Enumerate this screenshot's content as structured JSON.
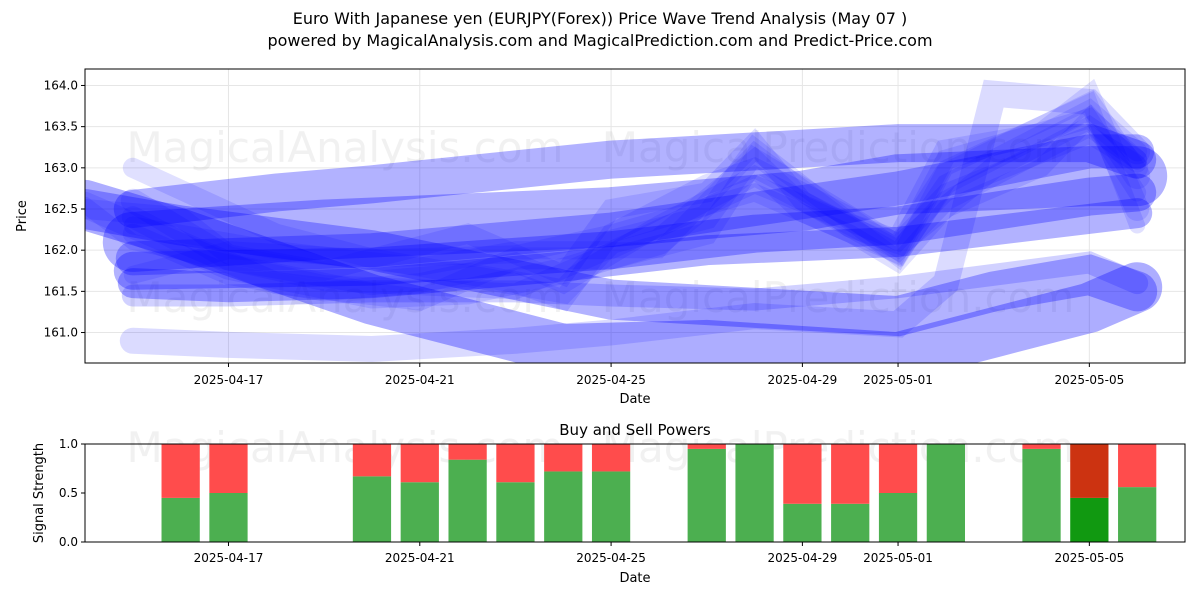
{
  "figure": {
    "title_line1": "Euro With Japanese yen (EURJPY(Forex)) Price Wave Trend Analysis (May 07 )",
    "title_line2": "powered by MagicalAnalysis.com and MagicalPrediction.com and Predict-Price.com",
    "watermarks": [
      "MagicalAnalysis.com",
      "MagicalPrediction.com"
    ]
  },
  "colors": {
    "wave": "#0000ff",
    "buy": "#4caf50",
    "sell": "#ff4c4c",
    "sell_dark": "#cc3311",
    "buy_dark": "#119911"
  },
  "chart_data": [
    {
      "type": "line",
      "title": "",
      "xlabel": "Date",
      "ylabel": "Price",
      "x_ticks": [
        "2025-04-17",
        "2025-04-21",
        "2025-04-25",
        "2025-04-29",
        "2025-05-01",
        "2025-05-05"
      ],
      "y_ticks": [
        161.0,
        161.5,
        162.0,
        162.5,
        163.0,
        163.5,
        164.0
      ],
      "xlim": [
        "2025-04-14",
        "2025-05-07"
      ],
      "ylim": [
        160.63,
        164.2
      ],
      "grid": true,
      "series": [
        {
          "values": [
            [
              "2025-04-14",
              162.55
            ],
            [
              "2025-04-15",
              162.3
            ],
            [
              "2025-04-17",
              161.8
            ],
            [
              "2025-04-20",
              161.45
            ],
            [
              "2025-04-22",
              161.5
            ],
            [
              "2025-04-24",
              161.75
            ],
            [
              "2025-04-26",
              162.1
            ],
            [
              "2025-04-28",
              163.05
            ],
            [
              "2025-04-29",
              162.5
            ],
            [
              "2025-05-01",
              162.0
            ],
            [
              "2025-05-02",
              162.9
            ],
            [
              "2025-05-05",
              163.75
            ],
            [
              "2025-05-06",
              162.9
            ]
          ],
          "width": 26,
          "opacity": 0.12
        },
        {
          "values": [
            [
              "2025-04-15",
              162.6
            ],
            [
              "2025-04-17",
              161.9
            ],
            [
              "2025-04-20",
              161.6
            ],
            [
              "2025-04-22",
              161.7
            ],
            [
              "2025-04-24",
              161.5
            ],
            [
              "2025-04-25",
              162.1
            ],
            [
              "2025-04-27",
              162.4
            ],
            [
              "2025-04-28",
              163.2
            ],
            [
              "2025-04-30",
              162.3
            ],
            [
              "2025-05-01",
              162.1
            ],
            [
              "2025-05-02",
              163.2
            ],
            [
              "2025-05-04",
              163.4
            ],
            [
              "2025-05-05",
              163.85
            ],
            [
              "2025-05-06",
              162.5
            ]
          ],
          "width": 24,
          "opacity": 0.12
        },
        {
          "values": [
            [
              "2025-04-15",
              162.4
            ],
            [
              "2025-04-16",
              162.1
            ],
            [
              "2025-04-18",
              161.6
            ],
            [
              "2025-04-21",
              161.4
            ],
            [
              "2025-04-23",
              161.9
            ],
            [
              "2025-04-25",
              161.9
            ],
            [
              "2025-04-27",
              162.2
            ],
            [
              "2025-04-28",
              163.1
            ],
            [
              "2025-04-30",
              162.4
            ],
            [
              "2025-05-01",
              162.05
            ],
            [
              "2025-05-03",
              163.0
            ],
            [
              "2025-05-05",
              163.6
            ],
            [
              "2025-05-06",
              163.0
            ]
          ],
          "width": 22,
          "opacity": 0.12
        },
        {
          "values": [
            [
              "2025-04-15",
              162.2
            ],
            [
              "2025-04-17",
              161.7
            ],
            [
              "2025-04-19",
              161.5
            ],
            [
              "2025-04-21",
              161.6
            ],
            [
              "2025-04-23",
              161.85
            ],
            [
              "2025-04-24",
              161.6
            ],
            [
              "2025-04-26",
              162.3
            ],
            [
              "2025-04-28",
              162.9
            ],
            [
              "2025-04-29",
              162.6
            ],
            [
              "2025-05-01",
              162.0
            ],
            [
              "2025-05-02",
              162.6
            ],
            [
              "2025-05-04",
              163.2
            ],
            [
              "2025-05-05",
              163.5
            ],
            [
              "2025-05-06",
              163.1
            ]
          ],
          "width": 20,
          "opacity": 0.12
        },
        {
          "values": [
            [
              "2025-04-14",
              162.5
            ],
            [
              "2025-04-16",
              162.4
            ],
            [
              "2025-04-17",
              161.95
            ],
            [
              "2025-04-19",
              161.75
            ],
            [
              "2025-04-22",
              162.2
            ],
            [
              "2025-04-24",
              161.7
            ],
            [
              "2025-04-25",
              162.5
            ],
            [
              "2025-04-27",
              162.7
            ],
            [
              "2025-04-28",
              163.3
            ],
            [
              "2025-04-29",
              162.6
            ],
            [
              "2025-05-01",
              161.95
            ],
            [
              "2025-05-02",
              162.8
            ],
            [
              "2025-05-05",
              163.7
            ],
            [
              "2025-05-06",
              163.2
            ]
          ],
          "width": 20,
          "opacity": 0.12
        },
        {
          "values": [
            [
              "2025-04-15",
              162.3
            ],
            [
              "2025-04-18",
              162.0
            ],
            [
              "2025-04-21",
              161.8
            ],
            [
              "2025-04-23",
              162.0
            ],
            [
              "2025-04-25",
              162.0
            ],
            [
              "2025-04-28",
              162.8
            ],
            [
              "2025-05-01",
              162.1
            ],
            [
              "2025-05-02",
              162.7
            ],
            [
              "2025-05-05",
              163.4
            ],
            [
              "2025-05-06",
              163.05
            ]
          ],
          "width": 18,
          "opacity": 0.12
        },
        {
          "values": [
            [
              "2025-04-15",
              163.0
            ],
            [
              "2025-04-18",
              162.2
            ],
            [
              "2025-04-20",
              161.9
            ],
            [
              "2025-04-23",
              161.6
            ],
            [
              "2025-04-24",
              161.4
            ],
            [
              "2025-04-25",
              162.2
            ],
            [
              "2025-04-27",
              162.8
            ],
            [
              "2025-04-28",
              163.0
            ],
            [
              "2025-04-30",
              162.4
            ],
            [
              "2025-05-01",
              162.0
            ],
            [
              "2025-05-02",
              163.1
            ],
            [
              "2025-05-05",
              163.6
            ],
            [
              "2025-05-06",
              163.1
            ]
          ],
          "width": 20,
          "opacity": 0.12
        },
        {
          "values": [
            [
              "2025-04-15",
              161.7
            ],
            [
              "2025-04-17",
              162.0
            ],
            [
              "2025-04-20",
              161.9
            ],
            [
              "2025-04-23",
              161.95
            ],
            [
              "2025-04-25",
              162.2
            ],
            [
              "2025-04-28",
              162.7
            ],
            [
              "2025-04-30",
              162.2
            ],
            [
              "2025-05-01",
              161.85
            ],
            [
              "2025-05-02",
              162.5
            ],
            [
              "2025-05-04",
              163.0
            ],
            [
              "2025-05-05",
              163.6
            ],
            [
              "2025-05-06",
              162.7
            ]
          ],
          "width": 18,
          "opacity": 0.12
        },
        {
          "values": [
            [
              "2025-04-14",
              162.55
            ],
            [
              "2025-04-15",
              162.1
            ],
            [
              "2025-04-19",
              161.6
            ],
            [
              "2025-04-23",
              161.5
            ],
            [
              "2025-04-25",
              162.0
            ],
            [
              "2025-04-26",
              162.0
            ],
            [
              "2025-04-28",
              163.2
            ],
            [
              "2025-05-01",
              161.9
            ],
            [
              "2025-05-02",
              163.0
            ],
            [
              "2025-05-05",
              163.8
            ],
            [
              "2025-05-06",
              162.3
            ]
          ],
          "width": 16,
          "opacity": 0.12
        },
        {
          "values": [
            [
              "2025-04-15",
              162.5
            ],
            [
              "2025-04-18",
              162.7
            ],
            [
              "2025-04-20",
              162.8
            ],
            [
              "2025-04-25",
              163.1
            ],
            [
              "2025-04-28",
              163.2
            ],
            [
              "2025-05-01",
              163.3
            ],
            [
              "2025-05-05",
              163.3
            ],
            [
              "2025-05-06",
              163.1
            ]
          ],
          "width": 38,
          "opacity": 0.3
        },
        {
          "values": [
            [
              "2025-04-15",
              161.9
            ],
            [
              "2025-04-20",
              162.0
            ],
            [
              "2025-04-25",
              162.25
            ],
            [
              "2025-04-28",
              162.5
            ],
            [
              "2025-05-01",
              162.75
            ],
            [
              "2025-05-05",
              163.2
            ],
            [
              "2025-05-06",
              163.2
            ]
          ],
          "width": 34,
          "opacity": 0.28
        },
        {
          "values": [
            [
              "2025-04-15",
              161.75
            ],
            [
              "2025-04-20",
              161.8
            ],
            [
              "2025-04-25",
              162.0
            ],
            [
              "2025-04-28",
              162.2
            ],
            [
              "2025-05-01",
              162.3
            ],
            [
              "2025-05-05",
              162.65
            ],
            [
              "2025-05-06",
              162.7
            ]
          ],
          "width": 38,
          "opacity": 0.3
        },
        {
          "values": [
            [
              "2025-04-15",
              162.1
            ],
            [
              "2025-04-19",
              162.25
            ],
            [
              "2025-04-25",
              162.4
            ],
            [
              "2025-04-29",
              162.6
            ],
            [
              "2025-05-01",
              162.8
            ],
            [
              "2025-05-05",
              162.9
            ],
            [
              "2025-05-06",
              162.9
            ]
          ],
          "width": 60,
          "opacity": 0.3
        },
        {
          "values": [
            [
              "2025-04-14",
              162.5
            ],
            [
              "2025-04-16",
              162.3
            ],
            [
              "2025-04-20",
              162.0
            ],
            [
              "2025-04-25",
              161.4
            ],
            [
              "2025-05-01",
              161.2
            ],
            [
              "2025-05-03",
              161.5
            ],
            [
              "2025-05-05",
              161.7
            ],
            [
              "2025-05-06",
              161.5
            ]
          ],
          "width": 40,
          "opacity": 0.3
        },
        {
          "values": [
            [
              "2025-04-15",
              161.6
            ],
            [
              "2025-04-17",
              161.55
            ],
            [
              "2025-04-20",
              161.6
            ],
            [
              "2025-04-24",
              161.8
            ],
            [
              "2025-04-27",
              162.0
            ],
            [
              "2025-05-01",
              162.1
            ],
            [
              "2025-05-06",
              162.45
            ]
          ],
          "width": 30,
          "opacity": 0.3
        },
        {
          "values": [
            [
              "2025-04-14",
              162.55
            ],
            [
              "2025-04-16",
              162.2
            ],
            [
              "2025-04-20",
              161.4
            ],
            [
              "2025-04-24",
              160.8
            ],
            [
              "2025-04-27",
              160.85
            ],
            [
              "2025-05-01",
              160.7
            ],
            [
              "2025-05-03",
              161.0
            ],
            [
              "2025-05-05",
              161.3
            ],
            [
              "2025-05-06",
              161.55
            ]
          ],
          "width": 50,
          "opacity": 0.32
        },
        {
          "values": [
            [
              "2025-04-15",
              161.45
            ],
            [
              "2025-04-17",
              161.45
            ],
            [
              "2025-04-20",
              161.5
            ],
            [
              "2025-04-23",
              161.5
            ],
            [
              "2025-04-25",
              161.45
            ],
            [
              "2025-04-28",
              161.4
            ],
            [
              "2025-05-01",
              161.55
            ],
            [
              "2025-05-05",
              161.85
            ],
            [
              "2025-05-06",
              161.6
            ]
          ],
          "width": 22,
          "opacity": 0.18
        },
        {
          "values": [
            [
              "2025-04-15",
              160.9
            ],
            [
              "2025-04-17",
              160.85
            ],
            [
              "2025-04-20",
              160.8
            ],
            [
              "2025-04-23",
              160.9
            ],
            [
              "2025-04-25",
              161.0
            ],
            [
              "2025-04-28",
              161.2
            ],
            [
              "2025-05-01",
              161.1
            ],
            [
              "2025-05-02",
              161.6
            ],
            [
              "2025-05-03",
              163.9
            ],
            [
              "2025-05-05",
              163.8
            ],
            [
              "2025-05-06",
              163.2
            ]
          ],
          "width": 26,
          "opacity": 0.14
        }
      ]
    },
    {
      "type": "bar",
      "title": "Buy and Sell Powers",
      "xlabel": "Date",
      "ylabel": "Signal Strength",
      "x_ticks": [
        "2025-04-17",
        "2025-04-21",
        "2025-04-25",
        "2025-04-29",
        "2025-05-01",
        "2025-05-05"
      ],
      "y_ticks": [
        0.0,
        0.5,
        1.0
      ],
      "xlim": [
        "2025-04-14",
        "2025-05-07"
      ],
      "ylim": [
        0,
        1
      ],
      "stacked": true,
      "categories": [
        "2025-04-16",
        "2025-04-17",
        "2025-04-20",
        "2025-04-21",
        "2025-04-22",
        "2025-04-23",
        "2025-04-24",
        "2025-04-25",
        "2025-04-27",
        "2025-04-28",
        "2025-04-29",
        "2025-04-30",
        "2025-05-01",
        "2025-05-02",
        "2025-05-04",
        "2025-05-05",
        "2025-05-06"
      ],
      "series": [
        {
          "values": [
            0.45,
            0.5,
            0.67,
            0.61,
            0.84,
            0.61,
            0.72,
            0.72,
            0.95,
            1.0,
            0.39,
            0.39,
            0.5,
            1.0,
            0.95,
            0.45,
            0.56
          ]
        },
        {
          "values": [
            0.55,
            0.5,
            0.33,
            0.39,
            0.16,
            0.39,
            0.28,
            0.28,
            0.05,
            0.0,
            0.61,
            0.61,
            0.5,
            0.0,
            0.05,
            0.55,
            0.44
          ]
        }
      ],
      "dark_categories": [
        "2025-05-05"
      ]
    }
  ]
}
